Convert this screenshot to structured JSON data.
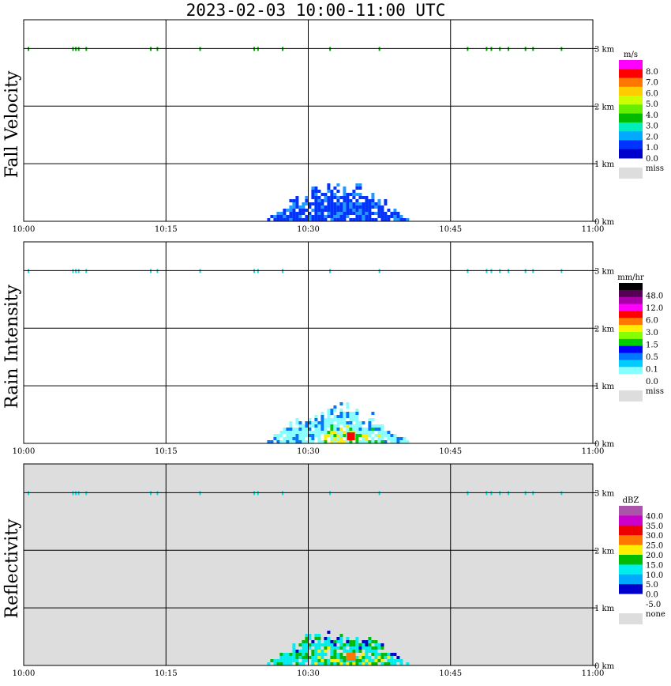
{
  "title": "2023-02-03  10:00-11:00 UTC",
  "chart_data": [
    {
      "type": "heatmap",
      "title": "Fall Velocity",
      "x_ticks": [
        "10:00",
        "10:15",
        "10:30",
        "10:45",
        "11:00"
      ],
      "xlim_minutes": [
        0,
        60
      ],
      "y_ticks": [
        "0 km",
        "1 km",
        "2 km",
        "3 km"
      ],
      "ylim_km": [
        0,
        3.5
      ],
      "grid": true,
      "background": "#ffffff",
      "legend": {
        "unit": "m/s",
        "labels": [
          "8.0",
          "7.0",
          "6.0",
          "5.0",
          "4.0",
          "3.0",
          "2.0",
          "1.0",
          "0.0",
          "miss"
        ],
        "colors": [
          "#ff00ff",
          "#ff0000",
          "#ff7700",
          "#ffcc00",
          "#ccff00",
          "#66ee00",
          "#00bb00",
          "#00eebb",
          "#00aaff",
          "#0033ff",
          "#0000cc",
          "#dddddd"
        ]
      },
      "dominant_color": "#0033ff",
      "secondary_color": "#2299ff",
      "echo_minutes": [
        25,
        41
      ],
      "echo_top_km": 0.75,
      "clutter_color": "#00aa00"
    },
    {
      "type": "heatmap",
      "title": "Rain Intensity",
      "x_ticks": [
        "10:00",
        "10:15",
        "10:30",
        "10:45",
        "11:00"
      ],
      "xlim_minutes": [
        0,
        60
      ],
      "y_ticks": [
        "0 km",
        "1 km",
        "2 km",
        "3 km"
      ],
      "ylim_km": [
        0,
        3.5
      ],
      "grid": true,
      "background": "#ffffff",
      "legend": {
        "unit": "mm/hr",
        "labels": [
          "48.0",
          "12.0",
          "6.0",
          "3.0",
          "1.5",
          "0.5",
          "0.1",
          "0.0",
          "miss"
        ],
        "colors": [
          "#000000",
          "#550055",
          "#aa00aa",
          "#ff00ff",
          "#ff0000",
          "#ff7700",
          "#ffee00",
          "#88ff00",
          "#00cc00",
          "#0000ff",
          "#0077ff",
          "#00ccff",
          "#88ffff",
          "#ffffff",
          "#dddddd"
        ]
      },
      "dominant_color": "#88ffff",
      "secondary_color": "#0077ff",
      "echo_minutes": [
        25,
        41
      ],
      "echo_top_km": 0.75,
      "clutter_color": "#00dddd"
    },
    {
      "type": "heatmap",
      "title": "Reflectivity",
      "x_ticks": [
        "10:00",
        "10:15",
        "10:30",
        "10:45",
        "11:00"
      ],
      "xlim_minutes": [
        0,
        60
      ],
      "y_ticks": [
        "0 km",
        "1 km",
        "2 km",
        "3 km"
      ],
      "ylim_km": [
        0,
        3.5
      ],
      "grid": true,
      "background": "#dddddd",
      "legend": {
        "unit": "dBZ",
        "labels": [
          "40.0",
          "35.0",
          "30.0",
          "25.0",
          "20.0",
          "15.0",
          "10.0",
          "5.0",
          "0.0",
          "-5.0",
          "none"
        ],
        "colors": [
          "#aa55aa",
          "#cc00cc",
          "#ee0000",
          "#ff7700",
          "#ffee00",
          "#00bb00",
          "#00eeee",
          "#00aaff",
          "#0000cc",
          "#ffffff",
          "#dddddd"
        ]
      },
      "dominant_color": "#00eeee",
      "secondary_color": "#00bb00",
      "echo_minutes": [
        25,
        41
      ],
      "echo_top_km": 0.7,
      "clutter_color": "#00dddd"
    }
  ]
}
